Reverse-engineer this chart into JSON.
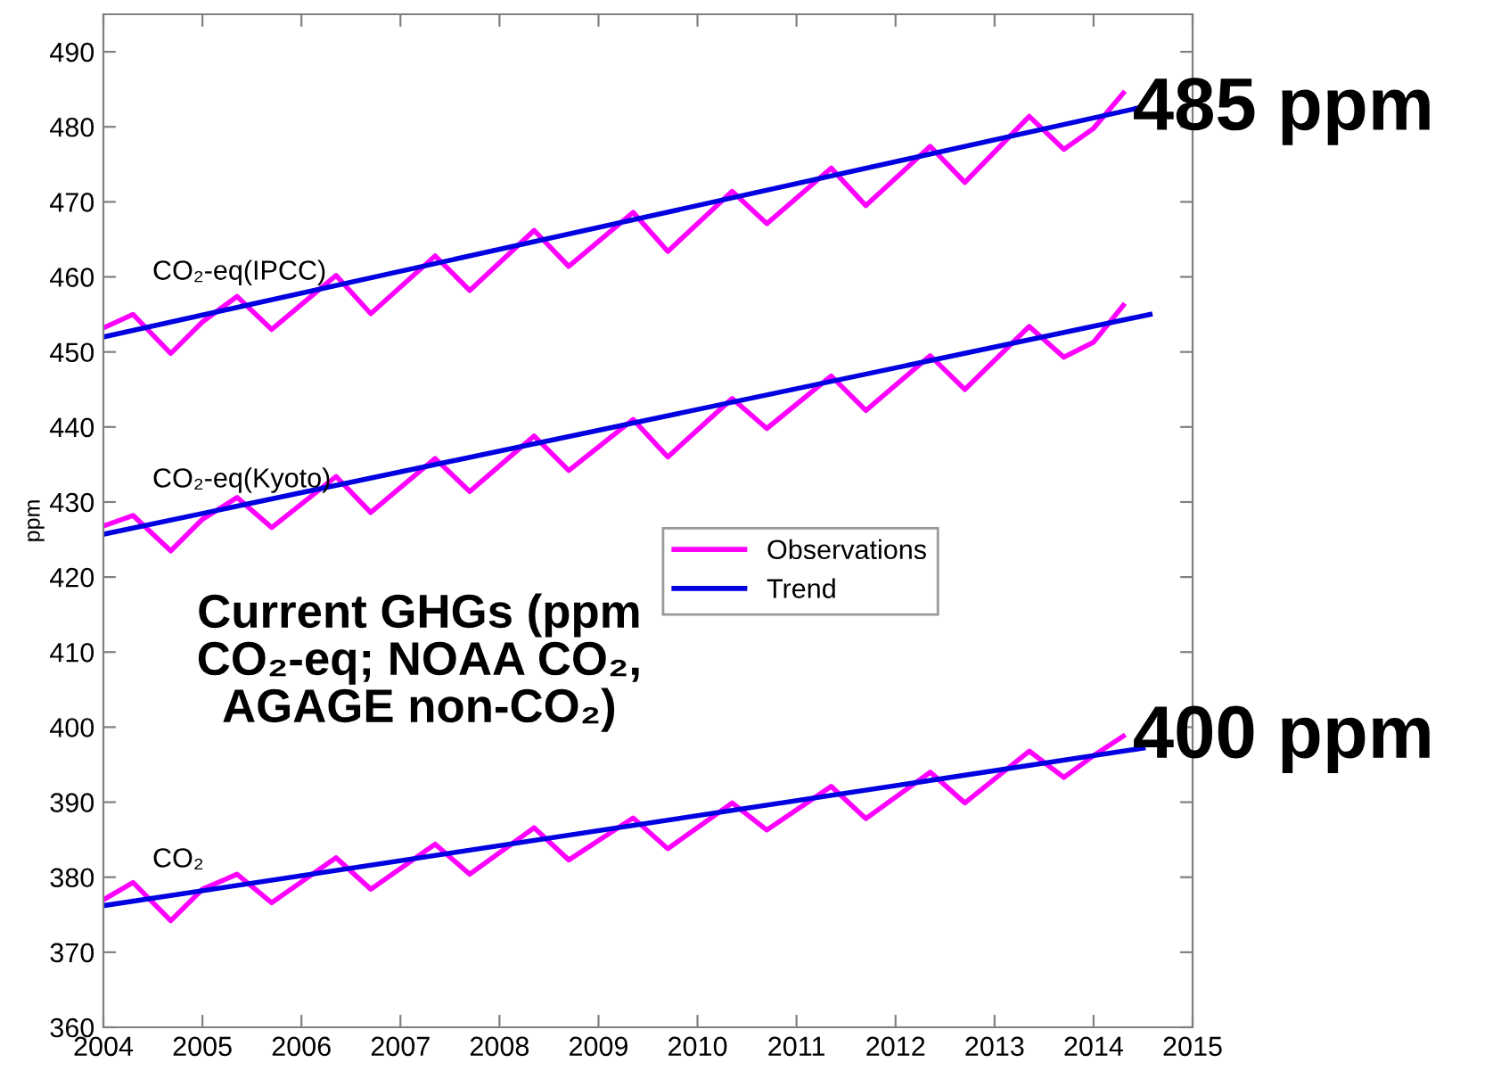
{
  "chart_data": {
    "type": "line",
    "ylabel": "ppm",
    "xlim": [
      2004,
      2015
    ],
    "xticks": [
      2004,
      2005,
      2006,
      2007,
      2008,
      2009,
      2010,
      2011,
      2012,
      2013,
      2014,
      2015
    ],
    "ylim": [
      360,
      495
    ],
    "yticks": [
      360,
      370,
      380,
      390,
      400,
      410,
      420,
      430,
      440,
      450,
      460,
      470,
      480,
      490
    ],
    "grid": false,
    "legend": "center right",
    "line_style": "solid",
    "marker": "none",
    "series": [
      {
        "name": "Observations",
        "color": "#ff00ff",
        "x": [
          2004.0,
          2004.3,
          2004.68,
          2005.0,
          2005.35,
          2005.7,
          2006.35,
          2006.7,
          2007.35,
          2007.7,
          2008.35,
          2008.7,
          2009.35,
          2009.7,
          2010.35,
          2010.7,
          2011.35,
          2011.7,
          2012.35,
          2012.7,
          2013.35,
          2013.7,
          2014.0,
          2014.3
        ],
        "values": [
          453.2,
          455.0,
          449.8,
          454.0,
          457.4,
          453.0,
          460.2,
          455.1,
          462.8,
          458.2,
          466.2,
          461.4,
          468.6,
          463.4,
          471.4,
          467.1,
          474.5,
          469.5,
          477.4,
          472.6,
          481.4,
          477.0,
          479.8,
          484.5
        ]
      },
      {
        "name": "Trend",
        "color": "#0000e0",
        "x": [
          2004.0,
          2014.45
        ],
        "values": [
          452.0,
          482.5
        ]
      },
      {
        "color": "#ff00ff",
        "x": [
          2004.0,
          2004.3,
          2004.68,
          2005.0,
          2005.35,
          2005.7,
          2006.35,
          2006.7,
          2007.35,
          2007.7,
          2008.35,
          2008.7,
          2009.35,
          2009.7,
          2010.35,
          2010.7,
          2011.35,
          2011.7,
          2012.35,
          2012.7,
          2013.35,
          2013.7,
          2014.0,
          2014.3
        ],
        "values": [
          426.8,
          428.2,
          423.5,
          427.7,
          430.6,
          426.6,
          433.4,
          428.6,
          435.8,
          431.4,
          438.8,
          434.2,
          441.0,
          436.0,
          443.8,
          439.8,
          446.8,
          442.2,
          449.5,
          445.0,
          453.4,
          449.3,
          451.3,
          456.2
        ]
      },
      {
        "color": "#0000e0",
        "x": [
          2004.0,
          2014.57
        ],
        "values": [
          425.7,
          455.0
        ]
      },
      {
        "color": "#ff00ff",
        "x": [
          2004.0,
          2004.3,
          2004.68,
          2005.0,
          2005.35,
          2005.7,
          2006.35,
          2006.7,
          2007.35,
          2007.7,
          2008.35,
          2008.7,
          2009.35,
          2009.7,
          2010.35,
          2010.7,
          2011.35,
          2011.7,
          2012.35,
          2012.7,
          2013.35,
          2013.7,
          2014.0,
          2014.3
        ],
        "values": [
          377.0,
          379.3,
          374.2,
          378.4,
          380.4,
          376.6,
          382.6,
          378.4,
          384.4,
          380.4,
          386.6,
          382.3,
          387.9,
          383.8,
          389.9,
          386.3,
          392.1,
          387.8,
          394.0,
          389.9,
          396.8,
          393.3,
          396.2,
          398.8
        ]
      },
      {
        "color": "#0000e0",
        "x": [
          2004.0,
          2014.5
        ],
        "values": [
          376.2,
          397.2
        ]
      }
    ],
    "annotations": [
      "CO₂-eq(IPCC)",
      "CO₂-eq(Kyoto)",
      "CO₂",
      "485 ppm",
      "400 ppm",
      "Current GHGs (ppm\nCO₂-eq; NOAA CO₂,\nAGAGE non-CO₂)"
    ]
  }
}
